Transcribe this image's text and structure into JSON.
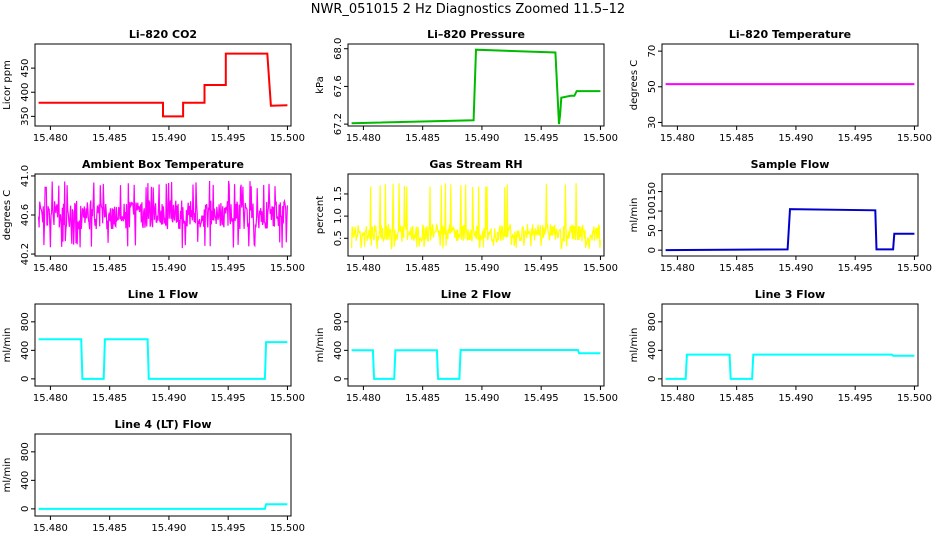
{
  "page": {
    "title": "NWR_051015  2 Hz Diagnostics Zoomed 11.5–12"
  },
  "chart_data": [
    {
      "id": "co2",
      "type": "line",
      "title": "Li–820 CO2",
      "ylabel": "Licor ppm",
      "xlim": [
        15.4787,
        15.5003
      ],
      "ylim": [
        330,
        500
      ],
      "xticks": [
        15.48,
        15.485,
        15.49,
        15.495,
        15.5
      ],
      "xtick_labels": [
        "15.480",
        "15.485",
        "15.490",
        "15.495",
        "15.500"
      ],
      "yticks": [
        350,
        400,
        450
      ],
      "ytick_labels": [
        "350",
        "400",
        "450"
      ],
      "color": "#ff0000",
      "x": [
        15.479,
        15.4895,
        15.4895,
        15.4897,
        15.4912,
        15.4912,
        15.493,
        15.493,
        15.4948,
        15.4948,
        15.4983,
        15.4986,
        15.5
      ],
      "y": [
        378,
        378,
        350,
        350,
        350,
        378,
        378,
        415,
        415,
        480,
        480,
        372,
        373
      ]
    },
    {
      "id": "pressure",
      "type": "line",
      "title": "Li–820 Pressure",
      "ylabel": "kPa",
      "xlim": [
        15.4787,
        15.5003
      ],
      "ylim": [
        67.18,
        68.05
      ],
      "xticks": [
        15.48,
        15.485,
        15.49,
        15.495,
        15.5
      ],
      "xtick_labels": [
        "15.480",
        "15.485",
        "15.490",
        "15.495",
        "15.500"
      ],
      "yticks": [
        67.2,
        67.6,
        68.0
      ],
      "ytick_labels": [
        "67.2",
        "67.6",
        "68.0"
      ],
      "color": "#00bb00",
      "x": [
        15.479,
        15.4893,
        15.4895,
        15.4962,
        15.4965,
        15.4966,
        15.4967,
        15.4975,
        15.4978,
        15.498,
        15.5
      ],
      "y": [
        67.21,
        67.24,
        67.99,
        67.96,
        67.2,
        67.3,
        67.48,
        67.5,
        67.5,
        67.55,
        67.55
      ]
    },
    {
      "id": "temperature",
      "type": "line",
      "title": "Li–820 Temperature",
      "ylabel": "degrees C",
      "xlim": [
        15.4787,
        15.5003
      ],
      "ylim": [
        28,
        74
      ],
      "xticks": [
        15.48,
        15.485,
        15.49,
        15.495,
        15.5
      ],
      "xtick_labels": [
        "15.480",
        "15.485",
        "15.490",
        "15.495",
        "15.500"
      ],
      "yticks": [
        30,
        50,
        70
      ],
      "ytick_labels": [
        "30",
        "50",
        "70"
      ],
      "color": "#ff00ff",
      "x": [
        15.479,
        15.5
      ],
      "y": [
        51.5,
        51.5
      ]
    },
    {
      "id": "ambient",
      "type": "line",
      "title": "Ambient Box Temperature",
      "ylabel": "degrees C",
      "xlim": [
        15.4787,
        15.5003
      ],
      "ylim": [
        40.18,
        41.02
      ],
      "xticks": [
        15.48,
        15.485,
        15.49,
        15.495,
        15.5
      ],
      "xtick_labels": [
        "15.480",
        "15.485",
        "15.490",
        "15.495",
        "15.500"
      ],
      "yticks": [
        40.2,
        40.6,
        41.0
      ],
      "ytick_labels": [
        "40.2",
        "40.6",
        "41.0"
      ],
      "color": "#ff00ff",
      "noise": {
        "x_start": 15.479,
        "x_end": 15.5,
        "center": 40.6,
        "spread": 0.15,
        "extreme_low": 40.26,
        "extreme_high": 40.95,
        "n": 420
      }
    },
    {
      "id": "rh",
      "type": "line",
      "title": "Gas Stream RH",
      "ylabel": "percent",
      "xlim": [
        15.4787,
        15.5003
      ],
      "ylim": [
        0.1,
        1.95
      ],
      "xticks": [
        15.48,
        15.485,
        15.49,
        15.495,
        15.5
      ],
      "xtick_labels": [
        "15.480",
        "15.485",
        "15.490",
        "15.495",
        "15.500"
      ],
      "yticks": [
        0.5,
        1.0,
        1.5
      ],
      "ytick_labels": [
        "0.5",
        "1.0",
        "1.5"
      ],
      "color": "#ffff00",
      "noise": {
        "x_start": 15.479,
        "x_end": 15.5,
        "center": 0.62,
        "spread": 0.2,
        "extreme_low": 0.25,
        "extreme_high": 1.75,
        "n": 420
      }
    },
    {
      "id": "sample_flow",
      "type": "line",
      "title": "Sample Flow",
      "ylabel": "ml/min",
      "xlim": [
        15.4787,
        15.5003
      ],
      "ylim": [
        -15,
        195
      ],
      "xticks": [
        15.48,
        15.485,
        15.49,
        15.495,
        15.5
      ],
      "xtick_labels": [
        "15.480",
        "15.485",
        "15.490",
        "15.495",
        "15.500"
      ],
      "yticks": [
        0,
        50,
        100,
        150
      ],
      "ytick_labels": [
        "0",
        "50",
        "100",
        "150"
      ],
      "color": "#0000cc",
      "x": [
        15.479,
        15.4893,
        15.4895,
        15.4967,
        15.4968,
        15.4982,
        15.4983,
        15.5
      ],
      "y": [
        0,
        2,
        105,
        102,
        2,
        2,
        42,
        42
      ]
    },
    {
      "id": "line1",
      "type": "line",
      "title": "Line 1 Flow",
      "ylabel": "ml/min",
      "xlim": [
        15.4787,
        15.5003
      ],
      "ylim": [
        -100,
        1050
      ],
      "xticks": [
        15.48,
        15.485,
        15.49,
        15.495,
        15.5
      ],
      "xtick_labels": [
        "15.480",
        "15.485",
        "15.490",
        "15.495",
        "15.500"
      ],
      "yticks": [
        0,
        400,
        800
      ],
      "ytick_labels": [
        "0",
        "400",
        "800"
      ],
      "color": "#00ffff",
      "x": [
        15.479,
        15.4826,
        15.4827,
        15.4845,
        15.4846,
        15.4882,
        15.4883,
        15.4981,
        15.4982,
        15.5
      ],
      "y": [
        555,
        555,
        0,
        0,
        555,
        555,
        0,
        0,
        515,
        515
      ]
    },
    {
      "id": "line2",
      "type": "line",
      "title": "Line 2 Flow",
      "ylabel": "ml/min",
      "xlim": [
        15.4787,
        15.5003
      ],
      "ylim": [
        -100,
        1050
      ],
      "xticks": [
        15.48,
        15.485,
        15.49,
        15.495,
        15.5
      ],
      "xtick_labels": [
        "15.480",
        "15.485",
        "15.490",
        "15.495",
        "15.500"
      ],
      "yticks": [
        0,
        400,
        800
      ],
      "ytick_labels": [
        "0",
        "400",
        "800"
      ],
      "color": "#00ffff",
      "x": [
        15.479,
        15.4808,
        15.4809,
        15.4826,
        15.4827,
        15.4862,
        15.4863,
        15.4881,
        15.4882,
        15.4981,
        15.4982,
        15.5
      ],
      "y": [
        400,
        400,
        0,
        0,
        400,
        400,
        0,
        0,
        405,
        405,
        360,
        360
      ]
    },
    {
      "id": "line3",
      "type": "line",
      "title": "Line 3 Flow",
      "ylabel": "ml/min",
      "xlim": [
        15.4787,
        15.5003
      ],
      "ylim": [
        -100,
        1050
      ],
      "xticks": [
        15.48,
        15.485,
        15.49,
        15.495,
        15.5
      ],
      "xtick_labels": [
        "15.480",
        "15.485",
        "15.490",
        "15.495",
        "15.500"
      ],
      "yticks": [
        0,
        400,
        800
      ],
      "ytick_labels": [
        "0",
        "400",
        "800"
      ],
      "color": "#00ffff",
      "x": [
        15.479,
        15.4807,
        15.4808,
        15.4844,
        15.4845,
        15.4863,
        15.4864,
        15.4981,
        15.4982,
        15.5
      ],
      "y": [
        0,
        0,
        340,
        340,
        0,
        0,
        340,
        340,
        325,
        325
      ]
    },
    {
      "id": "line4",
      "type": "line",
      "title": "Line 4 (LT) Flow",
      "ylabel": "ml/min",
      "xlim": [
        15.4787,
        15.5003
      ],
      "ylim": [
        -100,
        1050
      ],
      "xticks": [
        15.48,
        15.485,
        15.49,
        15.495,
        15.5
      ],
      "xtick_labels": [
        "15.480",
        "15.485",
        "15.490",
        "15.495",
        "15.500"
      ],
      "yticks": [
        0,
        400,
        800
      ],
      "ytick_labels": [
        "0",
        "400",
        "800"
      ],
      "color": "#00ffff",
      "x": [
        15.479,
        15.4981,
        15.4982,
        15.5
      ],
      "y": [
        0,
        0,
        65,
        65
      ]
    }
  ]
}
